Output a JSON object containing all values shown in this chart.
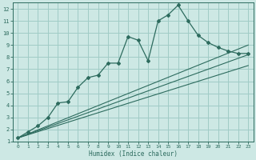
{
  "title": "",
  "xlabel": "Humidex (Indice chaleur)",
  "ylabel": "",
  "bg_color": "#cde8e4",
  "grid_color": "#a0ccc6",
  "line_color": "#2d6b5e",
  "xlim": [
    -0.5,
    23.5
  ],
  "ylim": [
    1,
    12.5
  ],
  "xticks": [
    0,
    1,
    2,
    3,
    4,
    5,
    6,
    7,
    8,
    9,
    10,
    11,
    12,
    13,
    14,
    15,
    16,
    17,
    18,
    19,
    20,
    21,
    22,
    23
  ],
  "yticks": [
    1,
    2,
    3,
    4,
    5,
    6,
    7,
    8,
    9,
    10,
    11,
    12
  ],
  "main_x": [
    0,
    1,
    2,
    3,
    4,
    5,
    6,
    7,
    8,
    9,
    10,
    11,
    12,
    13,
    14,
    15,
    16,
    17,
    18,
    19,
    20,
    21,
    22,
    23
  ],
  "main_y": [
    1.3,
    1.8,
    2.3,
    3.0,
    4.2,
    4.3,
    5.5,
    6.3,
    6.5,
    7.5,
    7.5,
    9.7,
    9.4,
    7.7,
    11.0,
    11.5,
    12.3,
    11.0,
    9.8,
    9.2,
    8.8,
    8.5,
    8.3,
    8.3
  ],
  "line1_x": [
    0,
    23
  ],
  "line1_y": [
    1.3,
    9.0
  ],
  "line2_x": [
    0,
    23
  ],
  "line2_y": [
    1.3,
    8.2
  ],
  "line3_x": [
    0,
    23
  ],
  "line3_y": [
    1.3,
    7.3
  ]
}
